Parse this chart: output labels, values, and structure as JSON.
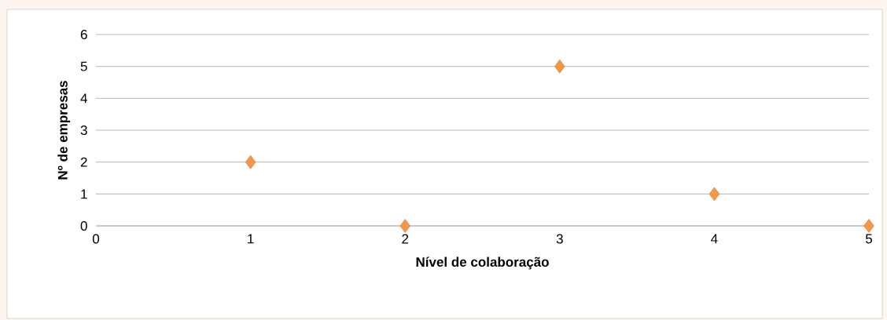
{
  "chart_data": {
    "type": "scatter",
    "xlabel": "Nível de colaboração",
    "ylabel": "Nº de empresas",
    "x": [
      1,
      2,
      3,
      4,
      5
    ],
    "series": [
      {
        "color": "#f79646",
        "values": [
          2,
          0,
          5,
          1,
          0
        ]
      }
    ],
    "xlim": [
      0,
      5
    ],
    "ylim": [
      0,
      6
    ],
    "xticks": [
      0,
      1,
      2,
      3,
      4,
      5
    ],
    "yticks": [
      0,
      1,
      2,
      3,
      4,
      5,
      6
    ],
    "grid": "y",
    "marker": "diamond"
  }
}
